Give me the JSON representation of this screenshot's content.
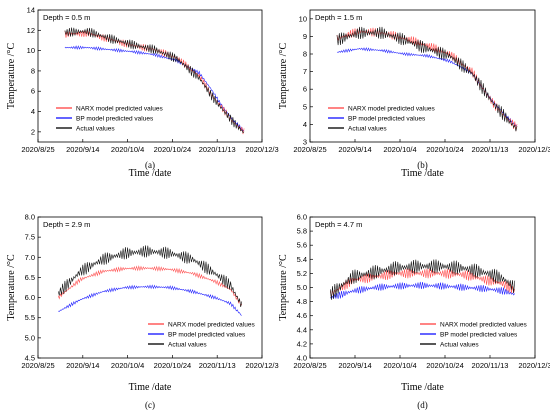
{
  "chart_data": [
    {
      "type": "line",
      "panel_label": "(a)",
      "annotation": "Depth = 0.5 m",
      "ylabel": "Temperature /°C",
      "xlabel": "Time /date",
      "x_ticks": [
        "2020/8/25",
        "2020/9/14",
        "2020/10/4",
        "2020/10/24",
        "2020/11/13",
        "2020/12/3"
      ],
      "xlim": [
        "2020/8/25",
        "2020/12/3"
      ],
      "ylim": [
        1,
        14
      ],
      "y_ticks": [
        2,
        4,
        6,
        8,
        10,
        12,
        14
      ],
      "legend_position": "bottom-left",
      "series": [
        {
          "name": "NARX model predicted values",
          "color": "#ff5050",
          "x": [
            "2020/9/6",
            "2020/9/16",
            "2020/9/26",
            "2020/10/6",
            "2020/10/16",
            "2020/10/26",
            "2020/11/5",
            "2020/11/10",
            "2020/11/15",
            "2020/11/20",
            "2020/11/25"
          ],
          "y": [
            11.6,
            11.7,
            11.1,
            10.5,
            10.1,
            9.3,
            7.5,
            5.8,
            4.4,
            3.0,
            2.0
          ]
        },
        {
          "name": "BP model predicted values",
          "color": "#2222ff",
          "x": [
            "2020/9/6",
            "2020/9/16",
            "2020/9/26",
            "2020/10/6",
            "2020/10/16",
            "2020/10/26",
            "2020/11/5",
            "2020/11/10",
            "2020/11/15",
            "2020/11/20",
            "2020/11/25"
          ],
          "y": [
            10.3,
            10.3,
            10.1,
            9.9,
            9.6,
            9.0,
            7.8,
            6.3,
            4.6,
            3.2,
            2.1
          ]
        },
        {
          "name": "Actual values",
          "color": "#111111",
          "x": [
            "2020/9/6",
            "2020/9/16",
            "2020/9/26",
            "2020/10/6",
            "2020/10/16",
            "2020/10/26",
            "2020/11/5",
            "2020/11/10",
            "2020/11/15",
            "2020/11/20",
            "2020/11/25"
          ],
          "y": [
            11.8,
            11.9,
            11.2,
            10.6,
            10.1,
            9.2,
            7.3,
            5.7,
            4.3,
            3.0,
            1.9
          ]
        }
      ]
    },
    {
      "type": "line",
      "panel_label": "(b)",
      "annotation": "Depth = 1.5 m",
      "ylabel": "Temperature /°C",
      "xlabel": "Time /date",
      "x_ticks": [
        "2020/8/25",
        "2020/9/14",
        "2020/10/4",
        "2020/10/24",
        "2020/11/13",
        "2020/12/3"
      ],
      "xlim": [
        "2020/8/25",
        "2020/12/3"
      ],
      "ylim": [
        3,
        10.5
      ],
      "y_ticks": [
        3,
        4,
        5,
        6,
        7,
        8,
        9,
        10
      ],
      "legend_position": "bottom-left",
      "series": [
        {
          "name": "NARX model predicted values",
          "color": "#ff5050",
          "x": [
            "2020/9/6",
            "2020/9/16",
            "2020/9/26",
            "2020/10/6",
            "2020/10/16",
            "2020/10/26",
            "2020/11/5",
            "2020/11/10",
            "2020/11/15",
            "2020/11/20",
            "2020/11/25"
          ],
          "y": [
            8.9,
            9.3,
            9.2,
            8.9,
            8.5,
            8.0,
            7.0,
            6.0,
            5.1,
            4.4,
            3.8
          ]
        },
        {
          "name": "BP model predicted values",
          "color": "#2222ff",
          "x": [
            "2020/9/6",
            "2020/9/16",
            "2020/9/26",
            "2020/10/6",
            "2020/10/16",
            "2020/10/26",
            "2020/11/5",
            "2020/11/10",
            "2020/11/15",
            "2020/11/20",
            "2020/11/25"
          ],
          "y": [
            8.1,
            8.3,
            8.2,
            8.0,
            7.9,
            7.6,
            6.9,
            6.0,
            5.2,
            4.5,
            3.9
          ]
        },
        {
          "name": "Actual values",
          "color": "#111111",
          "x": [
            "2020/9/6",
            "2020/9/16",
            "2020/9/26",
            "2020/10/6",
            "2020/10/16",
            "2020/10/26",
            "2020/11/5",
            "2020/11/10",
            "2020/11/15",
            "2020/11/20",
            "2020/11/25"
          ],
          "y": [
            8.8,
            9.2,
            9.2,
            8.8,
            8.3,
            7.9,
            6.9,
            6.0,
            5.1,
            4.4,
            3.7
          ]
        }
      ]
    },
    {
      "type": "line",
      "panel_label": "(c)",
      "annotation": "Depth = 2.9 m",
      "ylabel": "Temperature /°C",
      "xlabel": "Time /date",
      "x_ticks": [
        "2020/8/25",
        "2020/9/14",
        "2020/10/4",
        "2020/10/24",
        "2020/11/13",
        "2020/12/3"
      ],
      "xlim": [
        "2020/8/25",
        "2020/12/3"
      ],
      "ylim": [
        4.5,
        8.0
      ],
      "y_ticks": [
        4.5,
        5.0,
        5.5,
        6.0,
        6.5,
        7.0,
        7.5,
        8.0
      ],
      "legend_position": "bottom-right",
      "series": [
        {
          "name": "NARX model predicted values",
          "color": "#ff5050",
          "x": [
            "2020/9/3",
            "2020/9/13",
            "2020/9/23",
            "2020/10/3",
            "2020/10/13",
            "2020/10/23",
            "2020/11/2",
            "2020/11/12",
            "2020/11/19",
            "2020/11/24"
          ],
          "y": [
            6.0,
            6.45,
            6.65,
            6.72,
            6.73,
            6.7,
            6.6,
            6.4,
            6.2,
            5.8
          ]
        },
        {
          "name": "BP model predicted values",
          "color": "#2222ff",
          "x": [
            "2020/9/3",
            "2020/9/13",
            "2020/9/23",
            "2020/10/3",
            "2020/10/13",
            "2020/10/23",
            "2020/11/2",
            "2020/11/12",
            "2020/11/19",
            "2020/11/24"
          ],
          "y": [
            5.65,
            5.95,
            6.15,
            6.25,
            6.27,
            6.25,
            6.15,
            6.0,
            5.85,
            5.55
          ]
        },
        {
          "name": "Actual values",
          "color": "#111111",
          "x": [
            "2020/9/3",
            "2020/9/13",
            "2020/9/23",
            "2020/10/3",
            "2020/10/13",
            "2020/10/23",
            "2020/11/2",
            "2020/11/12",
            "2020/11/19",
            "2020/11/24"
          ],
          "y": [
            6.1,
            6.65,
            6.95,
            7.1,
            7.15,
            7.1,
            6.95,
            6.6,
            6.3,
            5.8
          ]
        }
      ]
    },
    {
      "type": "line",
      "panel_label": "(d)",
      "annotation": "Depth = 4.7 m",
      "ylabel": "Temperature /°C",
      "xlabel": "Time /date",
      "x_ticks": [
        "2020/8/25",
        "2020/9/14",
        "2020/10/4",
        "2020/10/24",
        "2020/11/13",
        "2020/12/3"
      ],
      "xlim": [
        "2020/8/25",
        "2020/12/3"
      ],
      "ylim": [
        4.0,
        6.0
      ],
      "y_ticks": [
        4.0,
        4.2,
        4.4,
        4.6,
        4.8,
        5.0,
        5.2,
        5.4,
        5.6,
        5.8,
        6.0
      ],
      "legend_position": "bottom-right",
      "series": [
        {
          "name": "NARX model predicted values",
          "color": "#ff5050",
          "x": [
            "2020/9/3",
            "2020/9/13",
            "2020/9/23",
            "2020/10/3",
            "2020/10/13",
            "2020/10/23",
            "2020/11/2",
            "2020/11/12",
            "2020/11/19",
            "2020/11/24"
          ],
          "y": [
            4.9,
            5.1,
            5.15,
            5.2,
            5.2,
            5.2,
            5.18,
            5.1,
            5.05,
            4.95
          ]
        },
        {
          "name": "BP model predicted values",
          "color": "#2222ff",
          "x": [
            "2020/9/3",
            "2020/9/13",
            "2020/9/23",
            "2020/10/3",
            "2020/10/13",
            "2020/10/23",
            "2020/11/2",
            "2020/11/12",
            "2020/11/19",
            "2020/11/24"
          ],
          "y": [
            4.85,
            4.95,
            5.0,
            5.02,
            5.03,
            5.02,
            5.0,
            4.98,
            4.95,
            4.9
          ]
        },
        {
          "name": "Actual values",
          "color": "#111111",
          "x": [
            "2020/9/3",
            "2020/9/13",
            "2020/9/23",
            "2020/10/3",
            "2020/10/13",
            "2020/10/23",
            "2020/11/2",
            "2020/11/12",
            "2020/11/19",
            "2020/11/24"
          ],
          "y": [
            4.9,
            5.15,
            5.22,
            5.28,
            5.3,
            5.3,
            5.27,
            5.2,
            5.12,
            5.0
          ]
        }
      ]
    }
  ]
}
